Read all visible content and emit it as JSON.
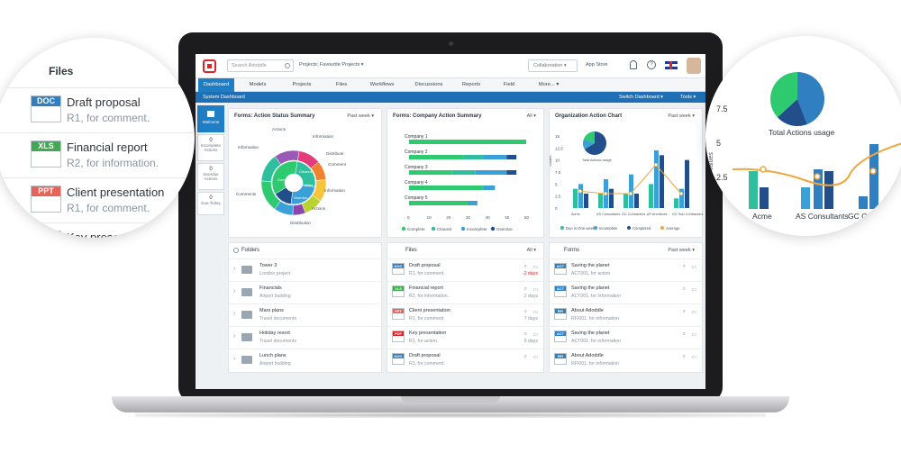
{
  "topbar": {
    "search_placeholder": "Search Adoddle",
    "projects_label": "Projects: Favourite Projects ▾",
    "collaboration_label": "Collaboration ▾",
    "app_store_label": "App Store"
  },
  "nav": {
    "tabs": [
      "Dashboard",
      "Models",
      "Projects",
      "Files",
      "Workflows",
      "Discussions",
      "Reports",
      "Field",
      "More... ▾"
    ]
  },
  "subbar": {
    "title": "System Dashboard",
    "switch_label": "Switch Dashboard ▾",
    "tools_label": "Tools ▾"
  },
  "rail": {
    "items": [
      {
        "count": "",
        "label": "Welcome"
      },
      {
        "count": "0",
        "label": "Incomplete Actions"
      },
      {
        "count": "0",
        "label": "Overdue Actions"
      },
      {
        "count": "0",
        "label": "Due Today"
      }
    ]
  },
  "action_status": {
    "title": "Forms: Action Status Summary",
    "filter": "Past week ▾",
    "labels": [
      "Actions",
      "Information",
      "Distribute",
      "Comment",
      "Information",
      "Actions",
      "Distribution",
      "Comments",
      "Information"
    ],
    "center": [
      "Cleared",
      "Incomplete",
      "Overdue",
      "Complete"
    ]
  },
  "company_action": {
    "title": "Forms: Company Action Summary",
    "filter": "All ▾",
    "chart_data": {
      "type": "bar",
      "orientation": "horizontal",
      "stacked": true,
      "categories": [
        "Company 1",
        "Company 2",
        "Company 3",
        "Company 4",
        "Company 5"
      ],
      "series": [
        {
          "name": "Complete",
          "color": "#2eca6f",
          "values": [
            60,
            28,
            22,
            38,
            30
          ]
        },
        {
          "name": "Cleared",
          "color": "#2fbf9f",
          "values": [
            0,
            10,
            12,
            0,
            0
          ]
        },
        {
          "name": "Incomplete",
          "color": "#3aa0d8",
          "values": [
            0,
            12,
            16,
            6,
            5
          ]
        },
        {
          "name": "Overdue",
          "color": "#234e8c",
          "values": [
            0,
            5,
            5,
            0,
            0
          ]
        }
      ],
      "xticks": [
        "0",
        "10",
        "20",
        "30",
        "40",
        "50",
        "60"
      ],
      "xlim": [
        0,
        60
      ]
    }
  },
  "org_action": {
    "title": "Organization Action Chart",
    "filter": "Past week ▾",
    "yticks": [
      "0",
      "2.5",
      "5",
      "7.5",
      "10",
      "12.5",
      "15"
    ],
    "ylabel": "Values",
    "inset_label": "Total Actions usage",
    "chart_data": {
      "type": "bar",
      "categories": [
        "Acme",
        "AS Consultants",
        "GC Contractors",
        "AP Architects",
        "GC Sub-Contractors"
      ],
      "series": [
        {
          "name": "Due in One week",
          "color": "#2fbf9f",
          "values": [
            4,
            3,
            3,
            5,
            2
          ]
        },
        {
          "name": "Incomplete",
          "color": "#3aa0d8",
          "values": [
            5,
            6,
            7,
            12,
            4
          ]
        },
        {
          "name": "Completed",
          "color": "#234e8c",
          "values": [
            3,
            4,
            3,
            11,
            10
          ]
        },
        {
          "name": "Average",
          "color": "#f0a63c",
          "values": [
            3.5,
            3,
            3,
            9,
            3
          ]
        }
      ],
      "ylim": [
        0,
        15
      ]
    }
  },
  "folders": {
    "title": "Folders",
    "items": [
      {
        "name": "Tower 3",
        "sub": "London project"
      },
      {
        "name": "Financials",
        "sub": "Airport building"
      },
      {
        "name": "Mars plans",
        "sub": "Travel documents"
      },
      {
        "name": "Holiday resort",
        "sub": "Travel documents"
      },
      {
        "name": "Lunch plans",
        "sub": "Airport building"
      }
    ]
  },
  "files": {
    "title": "Files",
    "filter": "All ▾",
    "items": [
      {
        "type": "DOC",
        "color": "#2f7fc1",
        "name": "Draft proposal",
        "sub": "R1, for comment.",
        "age": "-2 days",
        "overdue": true
      },
      {
        "type": "XLS",
        "color": "#43a853",
        "name": "Financial report",
        "sub": "R2, for information.",
        "age": "2 days",
        "overdue": false
      },
      {
        "type": "PPT",
        "color": "#e8645a",
        "name": "Client presentation",
        "sub": "R1, for comment",
        "age": "7 days",
        "overdue": false
      },
      {
        "type": "PDF",
        "color": "#d8262b",
        "name": "Key presentation",
        "sub": "R1, for action.",
        "age": "5 days",
        "overdue": false
      },
      {
        "type": "DOC",
        "color": "#2f7fc1",
        "name": "Draft proposal",
        "sub": "R1, for comment.",
        "age": "",
        "overdue": false
      }
    ]
  },
  "forms": {
    "title": "Forms",
    "filter": "Past week ▾",
    "items": [
      {
        "type": "ACT",
        "name": "Saving the planet",
        "sub": "ACT001, for action"
      },
      {
        "type": "ACT",
        "name": "Saving the planet",
        "sub": "ACT001, for information"
      },
      {
        "type": "RFI",
        "name": "About Adoddle",
        "sub": "RFI001, for information"
      },
      {
        "type": "ACT",
        "name": "Saving the planet",
        "sub": "ACT001, for information"
      },
      {
        "type": "RFI",
        "name": "About Adoddle",
        "sub": "RFI001, for information"
      }
    ]
  },
  "bubble_left": {
    "title": "Files",
    "items": [
      {
        "type": "DOC",
        "color": "#2f7fc1",
        "name": "Draft proposal",
        "sub": "R1, for comment."
      },
      {
        "type": "XLS",
        "color": "#43a853",
        "name": "Financial report",
        "sub": "R2, for information."
      },
      {
        "type": "PPT",
        "color": "#e8645a",
        "name": "Client presentation",
        "sub": "R1, for comment."
      },
      {
        "type": "",
        "color": "#d8262b",
        "name": "Key presen",
        "sub": ""
      }
    ]
  },
  "bubble_right": {
    "caption": "Total Actions usage",
    "yticks": [
      "7.5",
      "5",
      "2.5"
    ],
    "ylabel": "Values",
    "xlabels": [
      "Acme",
      "AS Consultants",
      "GC C"
    ]
  }
}
